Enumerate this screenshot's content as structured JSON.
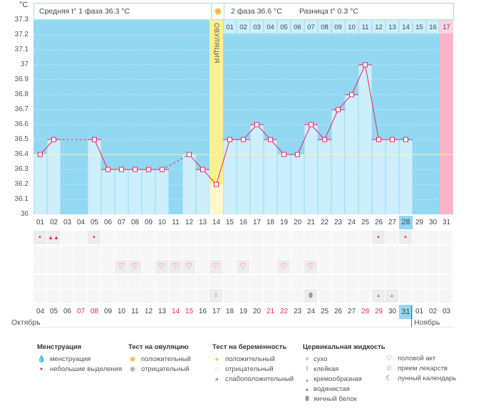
{
  "header": {
    "unit": "°C",
    "phase1": "Средняя t° 1 фаза 36.3 °C",
    "phase2": "2 фаза 36.6 °C",
    "diff": "Разница t° 0.3 °C",
    "ovulation_label": "ОВУЛЯЦИЯ",
    "ovulation_icon": "sun-icon"
  },
  "colors": {
    "bg": "#92d8f2",
    "bar": "#cdeefb",
    "line": "#f0245f",
    "ovulation": "#fdf08e",
    "period": "#fbb3c8",
    "coverline": "#fff4a8"
  },
  "chart_data": {
    "type": "line",
    "ylim": [
      36,
      37.3
    ],
    "yticks": [
      "37.3",
      "37.2",
      "37.1",
      "37",
      "36.9",
      "36.8",
      "36.7",
      "36.6",
      "36.5",
      "36.4",
      "36.3",
      "36.2",
      "36.1",
      "36"
    ],
    "coverline": 36.4,
    "ovulation_day": 14,
    "cycle_days": [
      "01",
      "02",
      "03",
      "04",
      "05",
      "06",
      "07",
      "08",
      "09",
      "10",
      "11",
      "12",
      "13",
      "14",
      "15",
      "16",
      "17",
      "18",
      "19",
      "20",
      "21",
      "22",
      "23",
      "24",
      "25",
      "26",
      "27",
      "28",
      "29",
      "30",
      "31"
    ],
    "current_cycle_day": "28",
    "values": [
      36.4,
      36.5,
      null,
      null,
      36.5,
      36.3,
      36.3,
      36.3,
      36.3,
      36.3,
      null,
      36.4,
      36.3,
      36.2,
      36.5,
      36.5,
      36.6,
      36.5,
      36.4,
      36.4,
      36.6,
      36.5,
      36.7,
      36.8,
      37.0,
      36.5,
      36.5,
      36.5,
      null,
      null,
      null
    ],
    "phase2_days": [
      "01",
      "02",
      "03",
      "04",
      "05",
      "06",
      "07",
      "08",
      "09",
      "10",
      "11",
      "12",
      "13",
      "14",
      "15",
      "16",
      "17"
    ],
    "dates": [
      "04",
      "05",
      "06",
      "07",
      "08",
      "09",
      "10",
      "11",
      "12",
      "13",
      "14",
      "15",
      "16",
      "17",
      "18",
      "19",
      "20",
      "21",
      "22",
      "23",
      "24",
      "25",
      "26",
      "27",
      "28",
      "29",
      "30",
      "31",
      "01",
      "02",
      "03"
    ],
    "weekend_dates": [
      3,
      4,
      10,
      11,
      17,
      18,
      24,
      25,
      31
    ],
    "today_date_index": 28,
    "months": [
      "Октябрь",
      "Ноябрь"
    ]
  },
  "symptoms": {
    "menstruation": {
      "1": "small",
      "2": "full",
      "5": "small",
      "26": "small",
      "28": "small"
    },
    "intercourse": [
      7,
      8,
      10,
      11,
      12,
      14,
      16,
      19,
      21
    ],
    "cervical": {
      "14": "sticky",
      "21": "eggwhite",
      "26": "watery",
      "27": "watery"
    }
  },
  "legend": {
    "menstruation": {
      "title": "Менструация",
      "items": [
        "менструация",
        "небольшие выделения"
      ]
    },
    "ovulation_test": {
      "title": "Тест на овуляцию",
      "items": [
        "положительный",
        "отрицательный"
      ]
    },
    "pregnancy_test": {
      "title": "Тест на беременность",
      "items": [
        "положительный",
        "отрицательный",
        "слабоположительный"
      ]
    },
    "cervical": {
      "title": "Цервикальная жидкость",
      "items": [
        "сухо",
        "клейкая",
        "кремообразная",
        "водянистая",
        "яичный белок"
      ]
    },
    "other": {
      "items": [
        "половой акт",
        "прием лекарств",
        "лунный календарь"
      ]
    }
  }
}
